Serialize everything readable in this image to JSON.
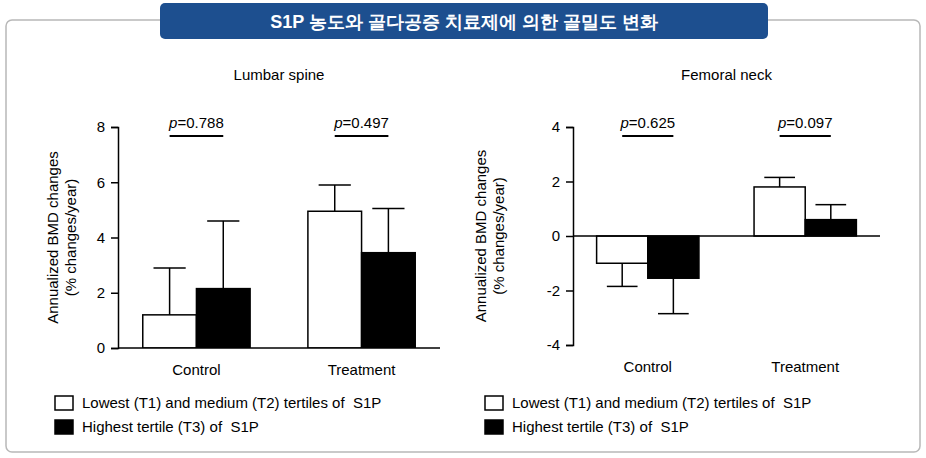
{
  "title": "S1P 농도와 골다공증 치료제에 의한 골밀도 변화",
  "chart_data": [
    {
      "type": "bar",
      "title": "Lumbar spine",
      "ylabel": [
        "Annualized BMD changes",
        "(% changes/year)"
      ],
      "categories": [
        "Control",
        "Treatment"
      ],
      "series": [
        {
          "name": "Lowest (T1) and medium (T2) tertiles of  S1P",
          "color": "#ffffff",
          "values": [
            1.2,
            4.95
          ],
          "errors": [
            1.7,
            0.95
          ]
        },
        {
          "name": "Highest tertile (T3) of  S1P",
          "color": "#000000",
          "values": [
            2.15,
            3.45
          ],
          "errors": [
            2.45,
            1.6
          ]
        }
      ],
      "ylim": [
        0,
        8
      ],
      "yticks": [
        0,
        2,
        4,
        6,
        8
      ],
      "grid": false,
      "legend": "bottom",
      "annotations": [
        {
          "text": "p=0.788",
          "category": "Control"
        },
        {
          "text": "p=0.497",
          "category": "Treatment"
        }
      ]
    },
    {
      "type": "bar",
      "title": "Femoral neck",
      "ylabel": [
        "Annualized BMD changes",
        "(% changes/year)"
      ],
      "categories": [
        "Control",
        "Treatment"
      ],
      "series": [
        {
          "name": "Lowest (T1) and medium (T2) tertiles of  S1P",
          "color": "#ffffff",
          "values": [
            -1.0,
            1.8
          ],
          "errors": [
            0.85,
            0.35
          ]
        },
        {
          "name": "Highest tertile (T3) of  S1P",
          "color": "#000000",
          "values": [
            -1.55,
            0.6
          ],
          "errors": [
            1.3,
            0.55
          ]
        }
      ],
      "ylim": [
        -4,
        4
      ],
      "yticks": [
        -4,
        -2,
        0,
        2,
        4
      ],
      "grid": false,
      "legend": "bottom",
      "annotations": [
        {
          "text": "p=0.625",
          "category": "Control"
        },
        {
          "text": "p=0.097",
          "category": "Treatment"
        }
      ]
    }
  ]
}
